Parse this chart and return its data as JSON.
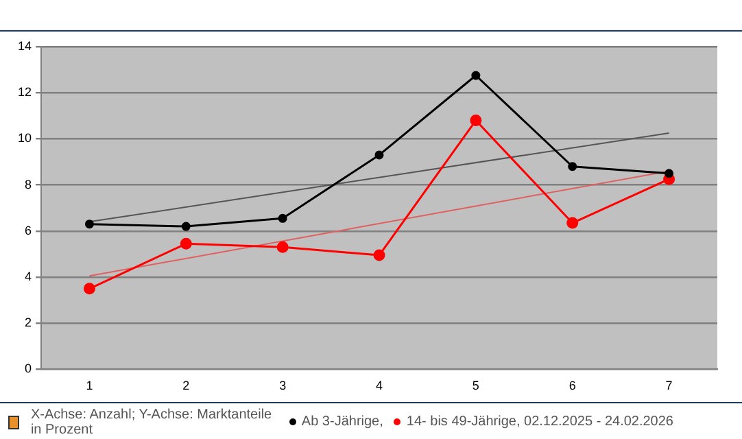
{
  "chart_data": {
    "type": "line",
    "categories": [
      "1",
      "2",
      "3",
      "4",
      "5",
      "6",
      "7"
    ],
    "series": [
      {
        "name": "Ab 3-Jährige,",
        "color": "#000000",
        "values": [
          6.3,
          6.2,
          6.55,
          9.3,
          12.75,
          8.8,
          8.5
        ],
        "marker": "circle"
      },
      {
        "name": "14- bis 49-Jährige, 02.12.2025 - 24.02.2026",
        "color": "#ff0000",
        "values": [
          3.5,
          5.45,
          5.3,
          4.95,
          10.8,
          6.35,
          8.25
        ],
        "marker": "circle"
      },
      {
        "type": "line",
        "color": "#555555",
        "x": [
          "1",
          "7"
        ],
        "values": [
          6.4,
          10.25
        ],
        "marker": "none"
      },
      {
        "type": "line",
        "color": "#e06060",
        "x": [
          "1",
          "7"
        ],
        "values": [
          4.05,
          8.6
        ],
        "marker": "none"
      }
    ],
    "ylim": [
      0,
      14
    ],
    "yticks": [
      0,
      2,
      4,
      6,
      8,
      10,
      12,
      14
    ],
    "grid": "y",
    "legend": "bottom",
    "annotations": [
      "X-Achse: Anzahl; Y-Achse: Marktanteile in Prozent"
    ]
  }
}
